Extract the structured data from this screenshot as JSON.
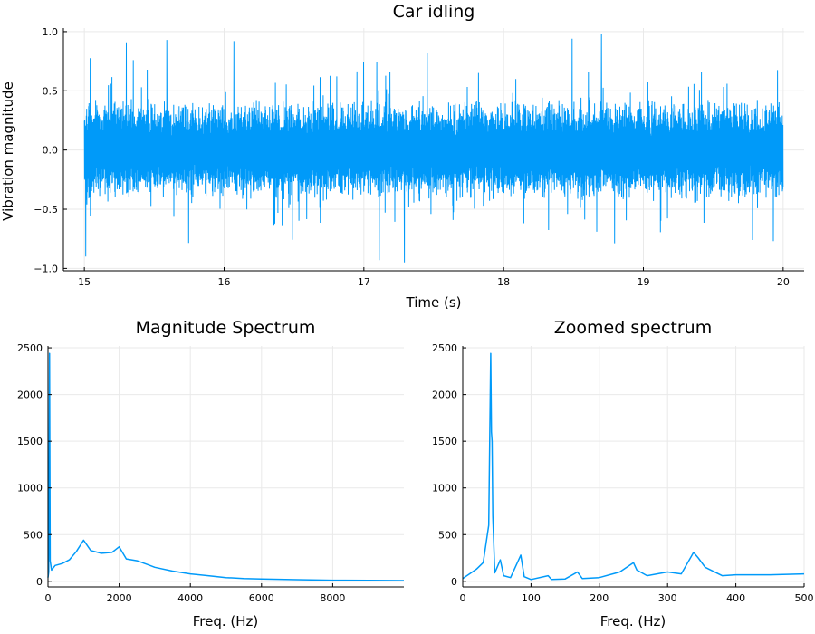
{
  "colors": {
    "series": "#009af9",
    "grid": "#e9e9e9",
    "axis": "#000000",
    "background": "#ffffff"
  },
  "chart_data": [
    {
      "type": "line",
      "title": "Car idling",
      "xlabel": "Time (s)",
      "ylabel": "Vibration magnitude",
      "xlim": [
        14.85,
        20.15
      ],
      "ylim": [
        -1.02,
        1.03
      ],
      "x_ticks": [
        "15",
        "16",
        "17",
        "18",
        "19",
        "20"
      ],
      "y_ticks": [
        "−1.0",
        "−0.5",
        "0.0",
        "0.5",
        "1.0"
      ],
      "grid": true,
      "legend": "none",
      "series": [
        {
          "x_range": [
            15,
            20
          ],
          "envelope": {
            "typical_min": -0.4,
            "typical_max": 0.45,
            "peak_min": -0.95,
            "peak_max": 0.98
          },
          "extremes": [
            {
              "x": 15.01,
              "y": -0.9
            },
            {
              "x": 15.3,
              "y": 0.91
            },
            {
              "x": 15.59,
              "y": 0.93
            },
            {
              "x": 16.07,
              "y": 0.92
            },
            {
              "x": 17.11,
              "y": -0.93
            },
            {
              "x": 17.29,
              "y": -0.95
            },
            {
              "x": 18.49,
              "y": 0.94
            },
            {
              "x": 18.7,
              "y": 0.98
            },
            {
              "x": 19.93,
              "y": -0.77
            }
          ]
        }
      ]
    },
    {
      "type": "line",
      "title": "Magnitude Spectrum",
      "xlabel": "Freq. (Hz)",
      "ylabel": "",
      "xlim": [
        0,
        10000
      ],
      "ylim": [
        -60,
        2520
      ],
      "x_ticks": [
        "0",
        "2000",
        "4000",
        "6000",
        "8000"
      ],
      "y_ticks": [
        "0",
        "500",
        "1000",
        "1500",
        "2000",
        "2500"
      ],
      "grid": true,
      "legend": "none",
      "series": [
        {
          "x": [
            0,
            20,
            42,
            60,
            100,
            200,
            400,
            600,
            800,
            1000,
            1200,
            1500,
            1800,
            2000,
            2200,
            2500,
            2800,
            3000,
            3500,
            4000,
            4500,
            5000,
            5500,
            6000,
            7000,
            8000,
            9000,
            10000
          ],
          "y": [
            40,
            100,
            2440,
            220,
            120,
            170,
            190,
            230,
            320,
            440,
            330,
            300,
            310,
            370,
            240,
            220,
            180,
            150,
            110,
            80,
            60,
            40,
            30,
            25,
            18,
            12,
            10,
            8
          ]
        }
      ]
    },
    {
      "type": "line",
      "title": "Zoomed spectrum",
      "xlabel": "Freq. (Hz)",
      "ylabel": "",
      "xlim": [
        0,
        500
      ],
      "ylim": [
        -60,
        2520
      ],
      "x_ticks": [
        "0",
        "100",
        "200",
        "300",
        "400",
        "500"
      ],
      "y_ticks": [
        "0",
        "500",
        "1000",
        "1500",
        "2000",
        "2500"
      ],
      "grid": true,
      "legend": "none",
      "series": [
        {
          "x": [
            0,
            10,
            20,
            30,
            38,
            41,
            42,
            43,
            44,
            47,
            55,
            60,
            70,
            85,
            90,
            100,
            125,
            130,
            150,
            168,
            175,
            200,
            230,
            250,
            255,
            270,
            300,
            320,
            338,
            345,
            355,
            380,
            400,
            450,
            500
          ],
          "y": [
            30,
            80,
            130,
            200,
            600,
            2440,
            1600,
            1500,
            700,
            90,
            230,
            60,
            40,
            280,
            50,
            20,
            60,
            20,
            25,
            100,
            30,
            40,
            100,
            200,
            120,
            60,
            100,
            80,
            310,
            250,
            150,
            60,
            70,
            70,
            80
          ]
        }
      ]
    }
  ]
}
